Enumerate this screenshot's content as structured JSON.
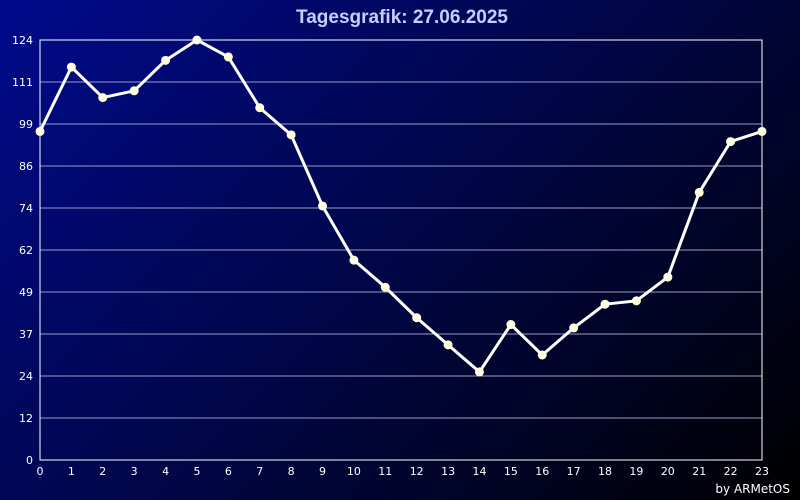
{
  "chart_data": {
    "type": "line",
    "title": "Tagesgrafik: 27.06.2025",
    "xlabel": "",
    "ylabel": "",
    "x": [
      0,
      1,
      2,
      3,
      4,
      5,
      6,
      7,
      8,
      9,
      10,
      11,
      12,
      13,
      14,
      15,
      16,
      17,
      18,
      19,
      20,
      21,
      22,
      23
    ],
    "x_tick_labels": [
      "0",
      "1",
      "2",
      "3",
      "4",
      "5",
      "6",
      "7",
      "8",
      "9",
      "10",
      "11",
      "12",
      "13",
      "14",
      "15",
      "16",
      "17",
      "18",
      "19",
      "20",
      "21",
      "22",
      "23"
    ],
    "y_tick_labels": [
      "0",
      "12",
      "24",
      "37",
      "49",
      "62",
      "74",
      "86",
      "99",
      "111",
      "124"
    ],
    "ylim": [
      0,
      124
    ],
    "grid": true,
    "series": [
      {
        "values": [
          97,
          116,
          107,
          109,
          118,
          124,
          119,
          104,
          96,
          75,
          59,
          51,
          42,
          34,
          26,
          40,
          31,
          39,
          46,
          47,
          54,
          79,
          94,
          97
        ]
      }
    ],
    "colors": {
      "line": "#ffffff",
      "marker": "#ffffe0",
      "grid": "#9a9ac8",
      "frame": "#ffffff"
    }
  },
  "footer": {
    "credit": "by ARMetOS"
  }
}
